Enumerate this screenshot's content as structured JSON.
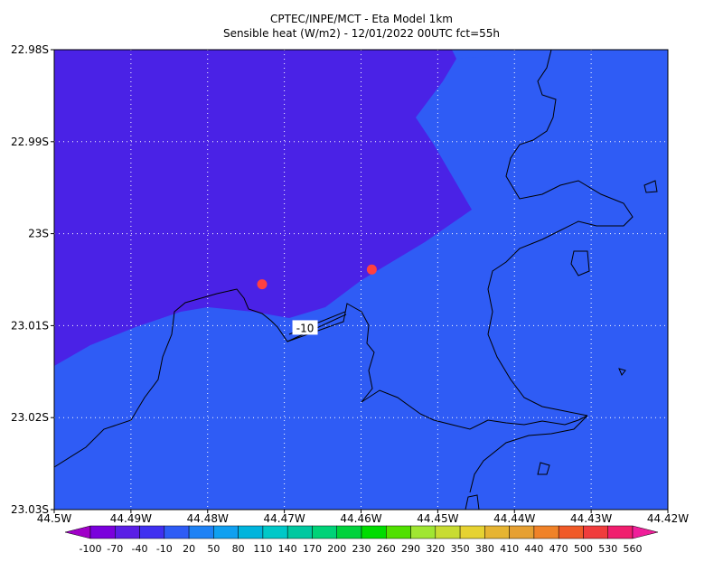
{
  "title": [
    "CPTEC/INPE/MCT -  Eta Model 1km",
    "Sensible heat (W/m2) - 12/01/2022 00UTC fct=55h"
  ],
  "map": {
    "xlim": [
      -44.5,
      -44.42
    ],
    "ylim": [
      -23.03,
      -22.98
    ],
    "xticks": [
      {
        "value": -44.5,
        "label": "44.5W"
      },
      {
        "value": -44.49,
        "label": "44.49W"
      },
      {
        "value": -44.48,
        "label": "44.48W"
      },
      {
        "value": -44.47,
        "label": "44.47W"
      },
      {
        "value": -44.46,
        "label": "44.46W"
      },
      {
        "value": -44.45,
        "label": "44.45W"
      },
      {
        "value": -44.44,
        "label": "44.44W"
      },
      {
        "value": -44.43,
        "label": "44.43W"
      },
      {
        "value": -44.42,
        "label": "44.42W"
      }
    ],
    "yticks": [
      {
        "value": -22.98,
        "label": "22.98S"
      },
      {
        "value": -22.99,
        "label": "22.99S"
      },
      {
        "value": -23,
        "label": "23S"
      },
      {
        "value": -23.01,
        "label": "23.01S"
      },
      {
        "value": -23.02,
        "label": "23.02S"
      },
      {
        "value": -23.03,
        "label": "23.03S"
      }
    ],
    "grid": true,
    "points": {
      "color": "#ff4040",
      "lon": [
        -44.4729,
        -44.4586
      ],
      "lat": [
        -23.0055,
        -23.0039
      ]
    },
    "contour_label": {
      "value": -10,
      "lon": -44.4673,
      "lat": -23.0102
    }
  },
  "colorbar": {
    "levels": [
      -100,
      -70,
      -40,
      -10,
      20,
      50,
      80,
      110,
      140,
      170,
      200,
      230,
      260,
      290,
      320,
      350,
      380,
      410,
      440,
      470,
      500,
      530,
      560
    ],
    "colors": [
      "#a000c8",
      "#7a00dc",
      "#5a1ee6",
      "#4030f0",
      "#2e5cf5",
      "#1e82f5",
      "#10a0f0",
      "#00b4dc",
      "#00c8c8",
      "#00c8a0",
      "#00d278",
      "#00d23c",
      "#00dc00",
      "#50e000",
      "#a0e632",
      "#c8dc32",
      "#e6d232",
      "#e6b432",
      "#e6a032",
      "#f08228",
      "#f05a28",
      "#f03c3c",
      "#f01e6e",
      "#f01e9a"
    ]
  }
}
